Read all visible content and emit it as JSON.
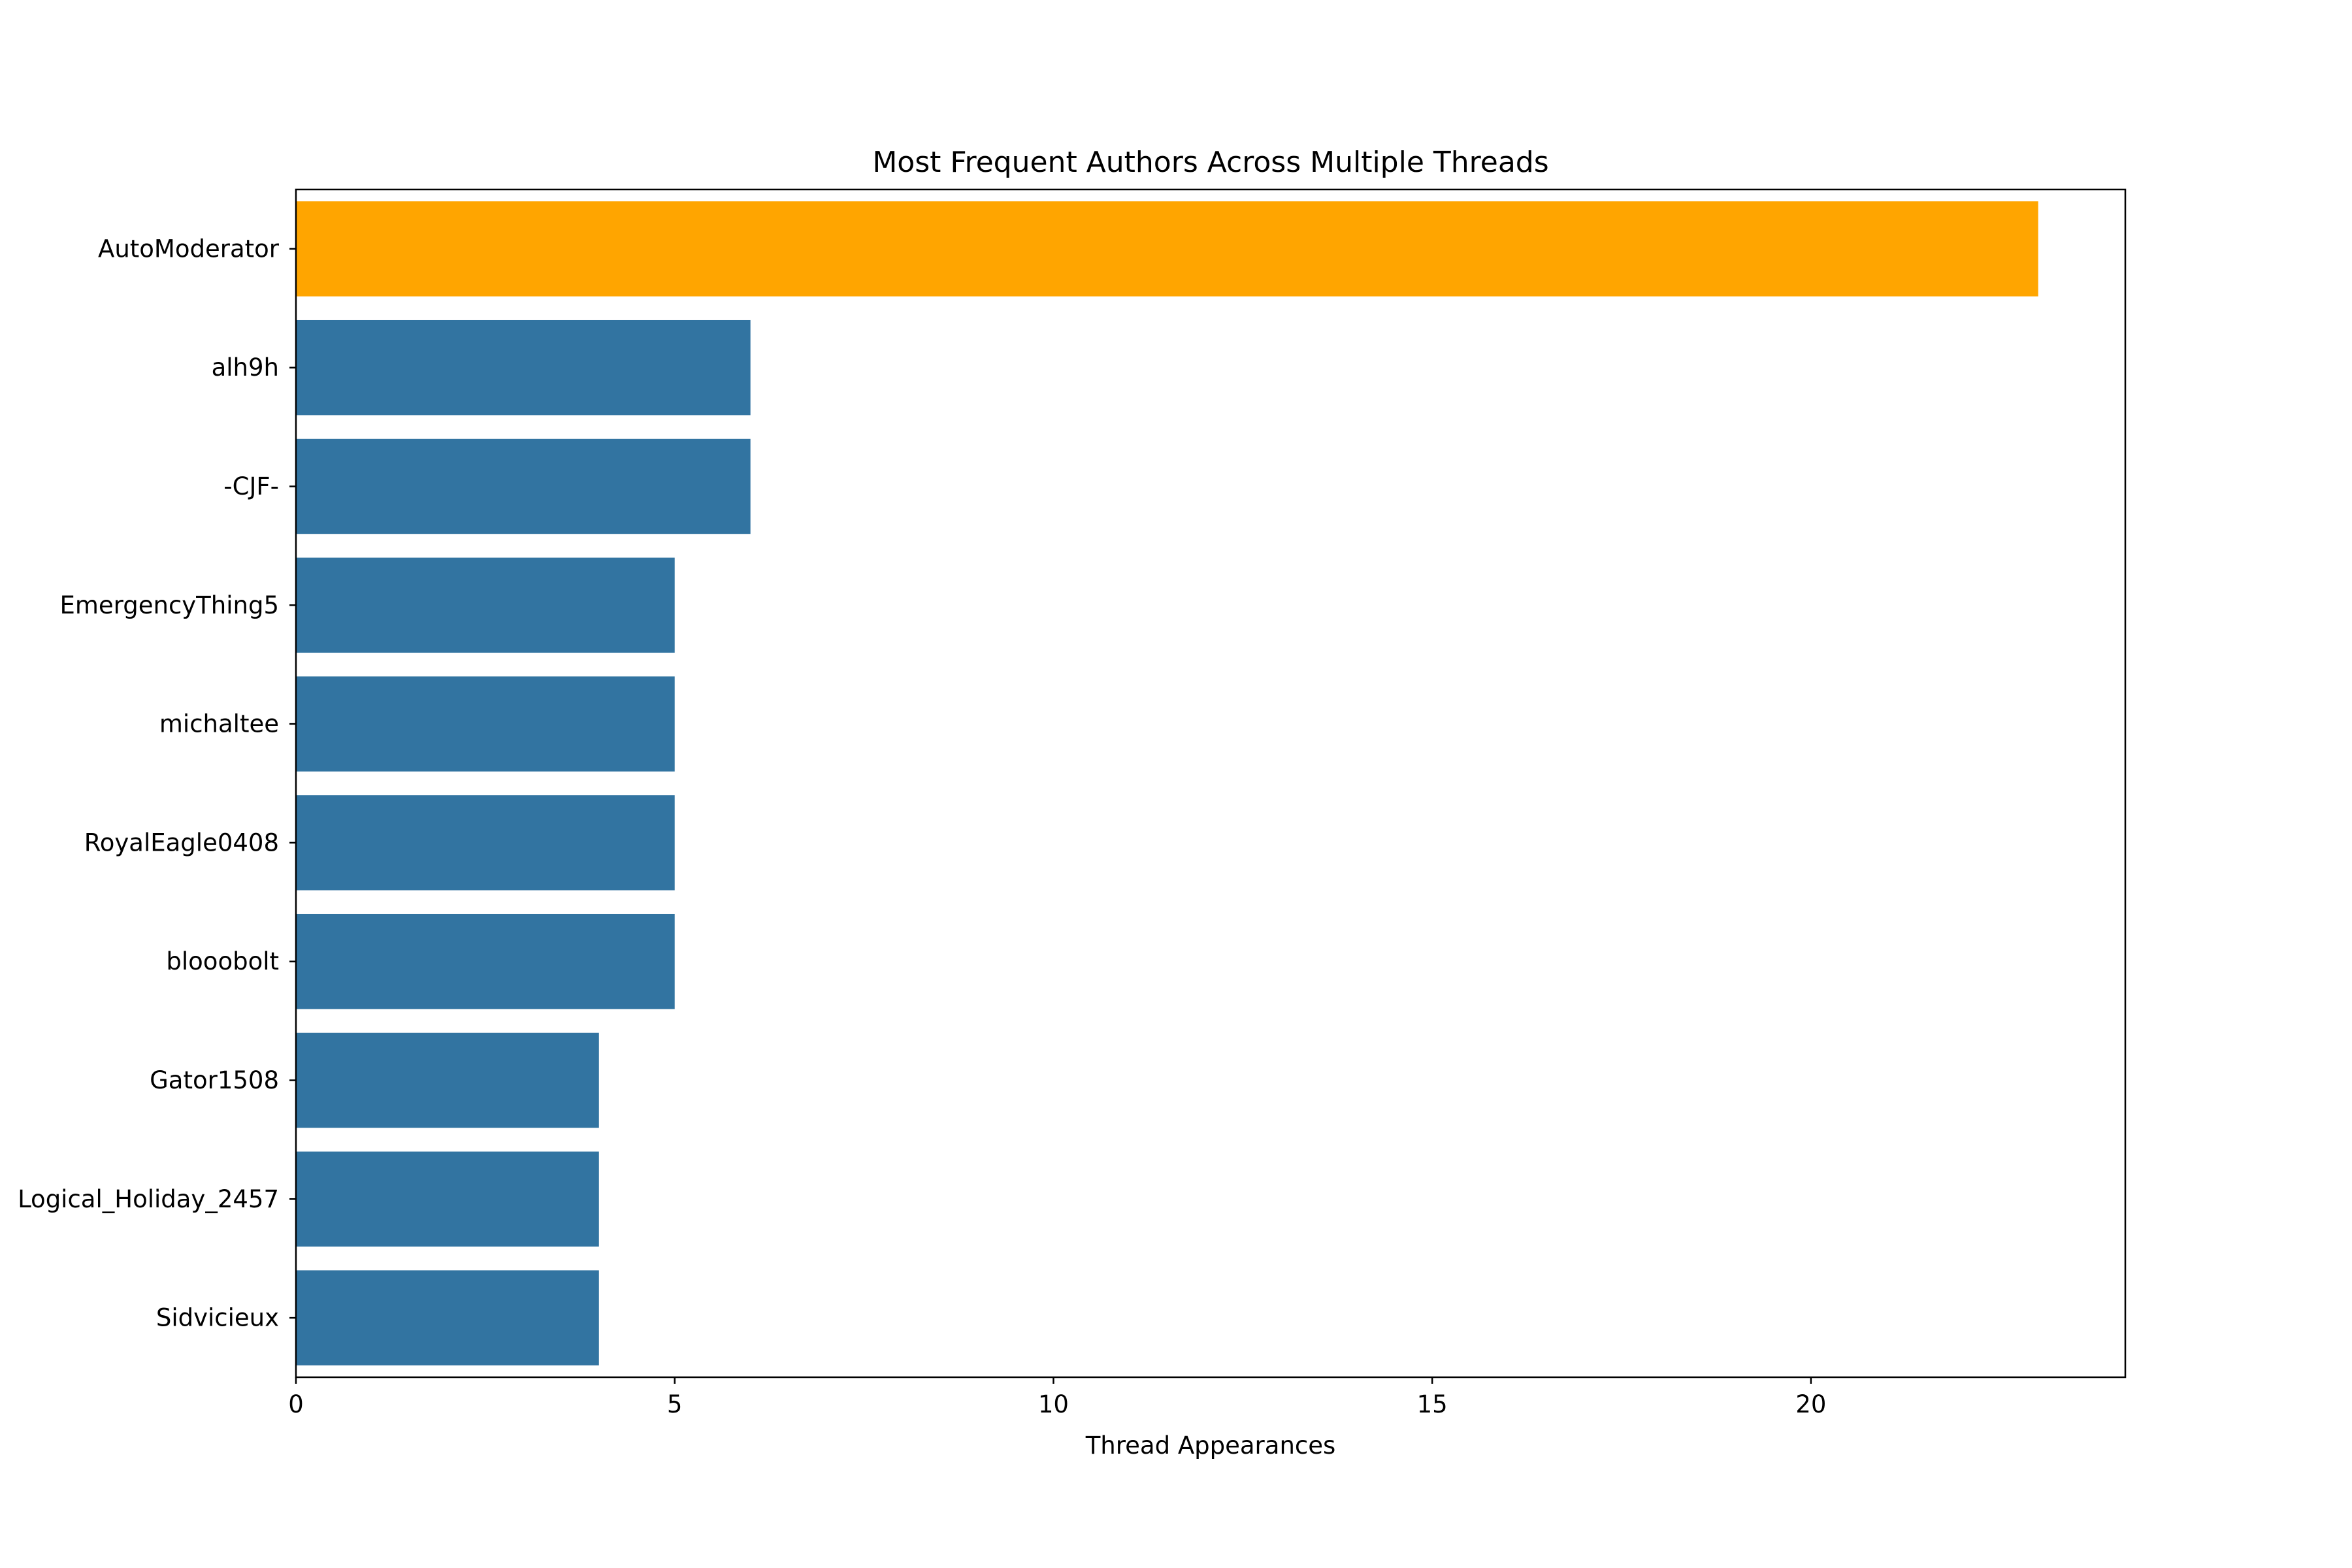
{
  "chart_data": {
    "type": "bar",
    "orientation": "horizontal",
    "title": "Most Frequent Authors Across Multiple Threads",
    "xlabel": "Thread Appearances",
    "ylabel": "",
    "categories": [
      "AutoModerator",
      "alh9h",
      "-CJF-",
      "EmergencyThing5",
      "michaltee",
      "RoyalEagle0408",
      "blooobolt",
      "Gator1508",
      "Logical_Holiday_2457",
      "Sidvicieux"
    ],
    "values": [
      23,
      6,
      6,
      5,
      5,
      5,
      5,
      4,
      4,
      4
    ],
    "colors": [
      "#ffa500",
      "#3274a1",
      "#3274a1",
      "#3274a1",
      "#3274a1",
      "#3274a1",
      "#3274a1",
      "#3274a1",
      "#3274a1",
      "#3274a1"
    ],
    "highlight_color": "#ffa500",
    "bar_color": "#3274a1",
    "xlim": [
      0,
      24.15
    ],
    "xticks": [
      "0",
      "5",
      "10",
      "15",
      "20"
    ],
    "grid": false
  }
}
